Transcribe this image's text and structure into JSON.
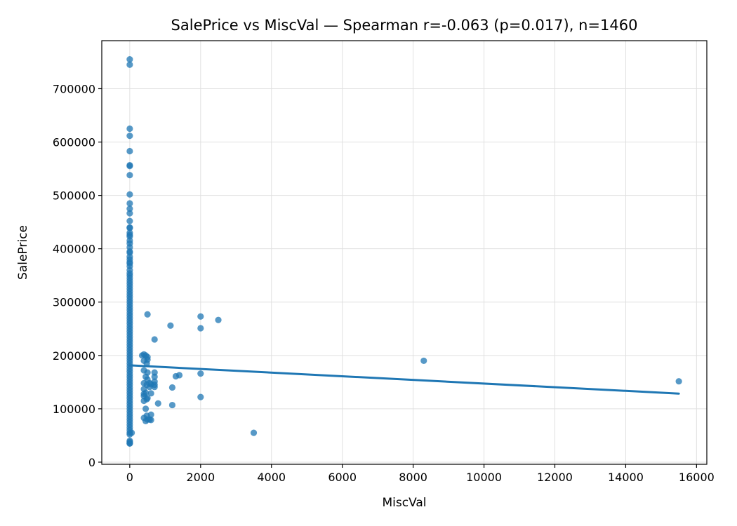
{
  "chart_data": {
    "type": "scatter",
    "title": "SalePrice vs MiscVal — Spearman r=-0.063 (p=0.017), n=1460",
    "xlabel": "MiscVal",
    "ylabel": "SalePrice",
    "xlim": [
      -790,
      16290
    ],
    "ylim": [
      -4000,
      790000
    ],
    "xticks": [
      0,
      2000,
      4000,
      6000,
      8000,
      10000,
      12000,
      14000,
      16000
    ],
    "yticks": [
      0,
      100000,
      200000,
      300000,
      400000,
      500000,
      600000,
      700000
    ],
    "grid": true,
    "colors": {
      "points": "#1f77b4",
      "line": "#1f77b4",
      "grid": "#e0e0e0"
    },
    "trend_line": {
      "x": [
        0,
        15500
      ],
      "y": [
        181500,
        128500
      ]
    },
    "series": [
      {
        "points": [
          [
            0,
            755000
          ],
          [
            0,
            745000
          ],
          [
            0,
            625000
          ],
          [
            0,
            611657
          ],
          [
            0,
            582933
          ],
          [
            0,
            556581
          ],
          [
            0,
            555000
          ],
          [
            0,
            538000
          ],
          [
            0,
            501837
          ],
          [
            0,
            485000
          ],
          [
            0,
            475000
          ],
          [
            0,
            466500
          ],
          [
            0,
            451950
          ],
          [
            0,
            440000
          ],
          [
            0,
            438780
          ],
          [
            0,
            430000
          ],
          [
            0,
            426000
          ],
          [
            0,
            423000
          ],
          [
            0,
            415298
          ],
          [
            0,
            410000
          ],
          [
            0,
            402861
          ],
          [
            0,
            395000
          ],
          [
            0,
            392500
          ],
          [
            0,
            385000
          ],
          [
            0,
            380000
          ],
          [
            0,
            375000
          ],
          [
            0,
            372500
          ],
          [
            0,
            367294
          ],
          [
            0,
            360000
          ],
          [
            0,
            354000
          ],
          [
            0,
            350000
          ],
          [
            0,
            345000
          ],
          [
            0,
            340000
          ],
          [
            0,
            335000
          ],
          [
            0,
            330000
          ],
          [
            0,
            325000
          ],
          [
            0,
            320000
          ],
          [
            0,
            315000
          ],
          [
            0,
            310000
          ],
          [
            0,
            305000
          ],
          [
            0,
            300000
          ],
          [
            0,
            295000
          ],
          [
            0,
            290000
          ],
          [
            0,
            285000
          ],
          [
            0,
            280000
          ],
          [
            0,
            275000
          ],
          [
            0,
            270000
          ],
          [
            0,
            265000
          ],
          [
            0,
            260000
          ],
          [
            0,
            255000
          ],
          [
            0,
            250000
          ],
          [
            0,
            245000
          ],
          [
            0,
            240000
          ],
          [
            0,
            235000
          ],
          [
            0,
            230000
          ],
          [
            0,
            225000
          ],
          [
            0,
            220000
          ],
          [
            0,
            215000
          ],
          [
            0,
            210000
          ],
          [
            0,
            205000
          ],
          [
            0,
            200000
          ],
          [
            0,
            195000
          ],
          [
            0,
            190000
          ],
          [
            0,
            185000
          ],
          [
            0,
            180000
          ],
          [
            0,
            175000
          ],
          [
            0,
            170000
          ],
          [
            0,
            165000
          ],
          [
            0,
            160000
          ],
          [
            0,
            155000
          ],
          [
            0,
            150000
          ],
          [
            0,
            145000
          ],
          [
            0,
            140000
          ],
          [
            0,
            135000
          ],
          [
            0,
            130000
          ],
          [
            0,
            125000
          ],
          [
            0,
            120000
          ],
          [
            0,
            115000
          ],
          [
            0,
            110000
          ],
          [
            0,
            105000
          ],
          [
            0,
            100000
          ],
          [
            0,
            95000
          ],
          [
            0,
            90000
          ],
          [
            0,
            85000
          ],
          [
            0,
            80000
          ],
          [
            0,
            75000
          ],
          [
            0,
            70000
          ],
          [
            0,
            65000
          ],
          [
            0,
            60000
          ],
          [
            0,
            55000
          ],
          [
            0,
            52000
          ],
          [
            0,
            40000
          ],
          [
            0,
            37900
          ],
          [
            0,
            35311
          ],
          [
            0,
            34900
          ],
          [
            54,
            55000
          ],
          [
            350,
            200000
          ],
          [
            400,
            202000
          ],
          [
            400,
            190000
          ],
          [
            400,
            172000
          ],
          [
            400,
            148000
          ],
          [
            400,
            137000
          ],
          [
            400,
            128000
          ],
          [
            400,
            124000
          ],
          [
            400,
            115000
          ],
          [
            400,
            83000
          ],
          [
            450,
            200000
          ],
          [
            450,
            160000
          ],
          [
            450,
            130000
          ],
          [
            450,
            100000
          ],
          [
            450,
            77000
          ],
          [
            480,
            185000
          ],
          [
            480,
            145000
          ],
          [
            480,
            118000
          ],
          [
            480,
            87000
          ],
          [
            500,
            277000
          ],
          [
            500,
            197000
          ],
          [
            500,
            192000
          ],
          [
            500,
            168000
          ],
          [
            500,
            155000
          ],
          [
            500,
            120000
          ],
          [
            500,
            80000
          ],
          [
            560,
            148000
          ],
          [
            560,
            141000
          ],
          [
            560,
            80000
          ],
          [
            600,
            146000
          ],
          [
            600,
            129000
          ],
          [
            600,
            89000
          ],
          [
            600,
            79000
          ],
          [
            700,
            230000
          ],
          [
            700,
            168000
          ],
          [
            700,
            160000
          ],
          [
            700,
            151000
          ],
          [
            700,
            145000
          ],
          [
            700,
            141000
          ],
          [
            800,
            110000
          ],
          [
            1150,
            256000
          ],
          [
            1200,
            140000
          ],
          [
            1200,
            107000
          ],
          [
            1300,
            161000
          ],
          [
            1400,
            163000
          ],
          [
            2000,
            273000
          ],
          [
            2000,
            251000
          ],
          [
            2000,
            166000
          ],
          [
            2000,
            122000
          ],
          [
            2500,
            266500
          ],
          [
            3500,
            55000
          ],
          [
            8300,
            190000
          ],
          [
            15500,
            151500
          ]
        ]
      }
    ]
  }
}
